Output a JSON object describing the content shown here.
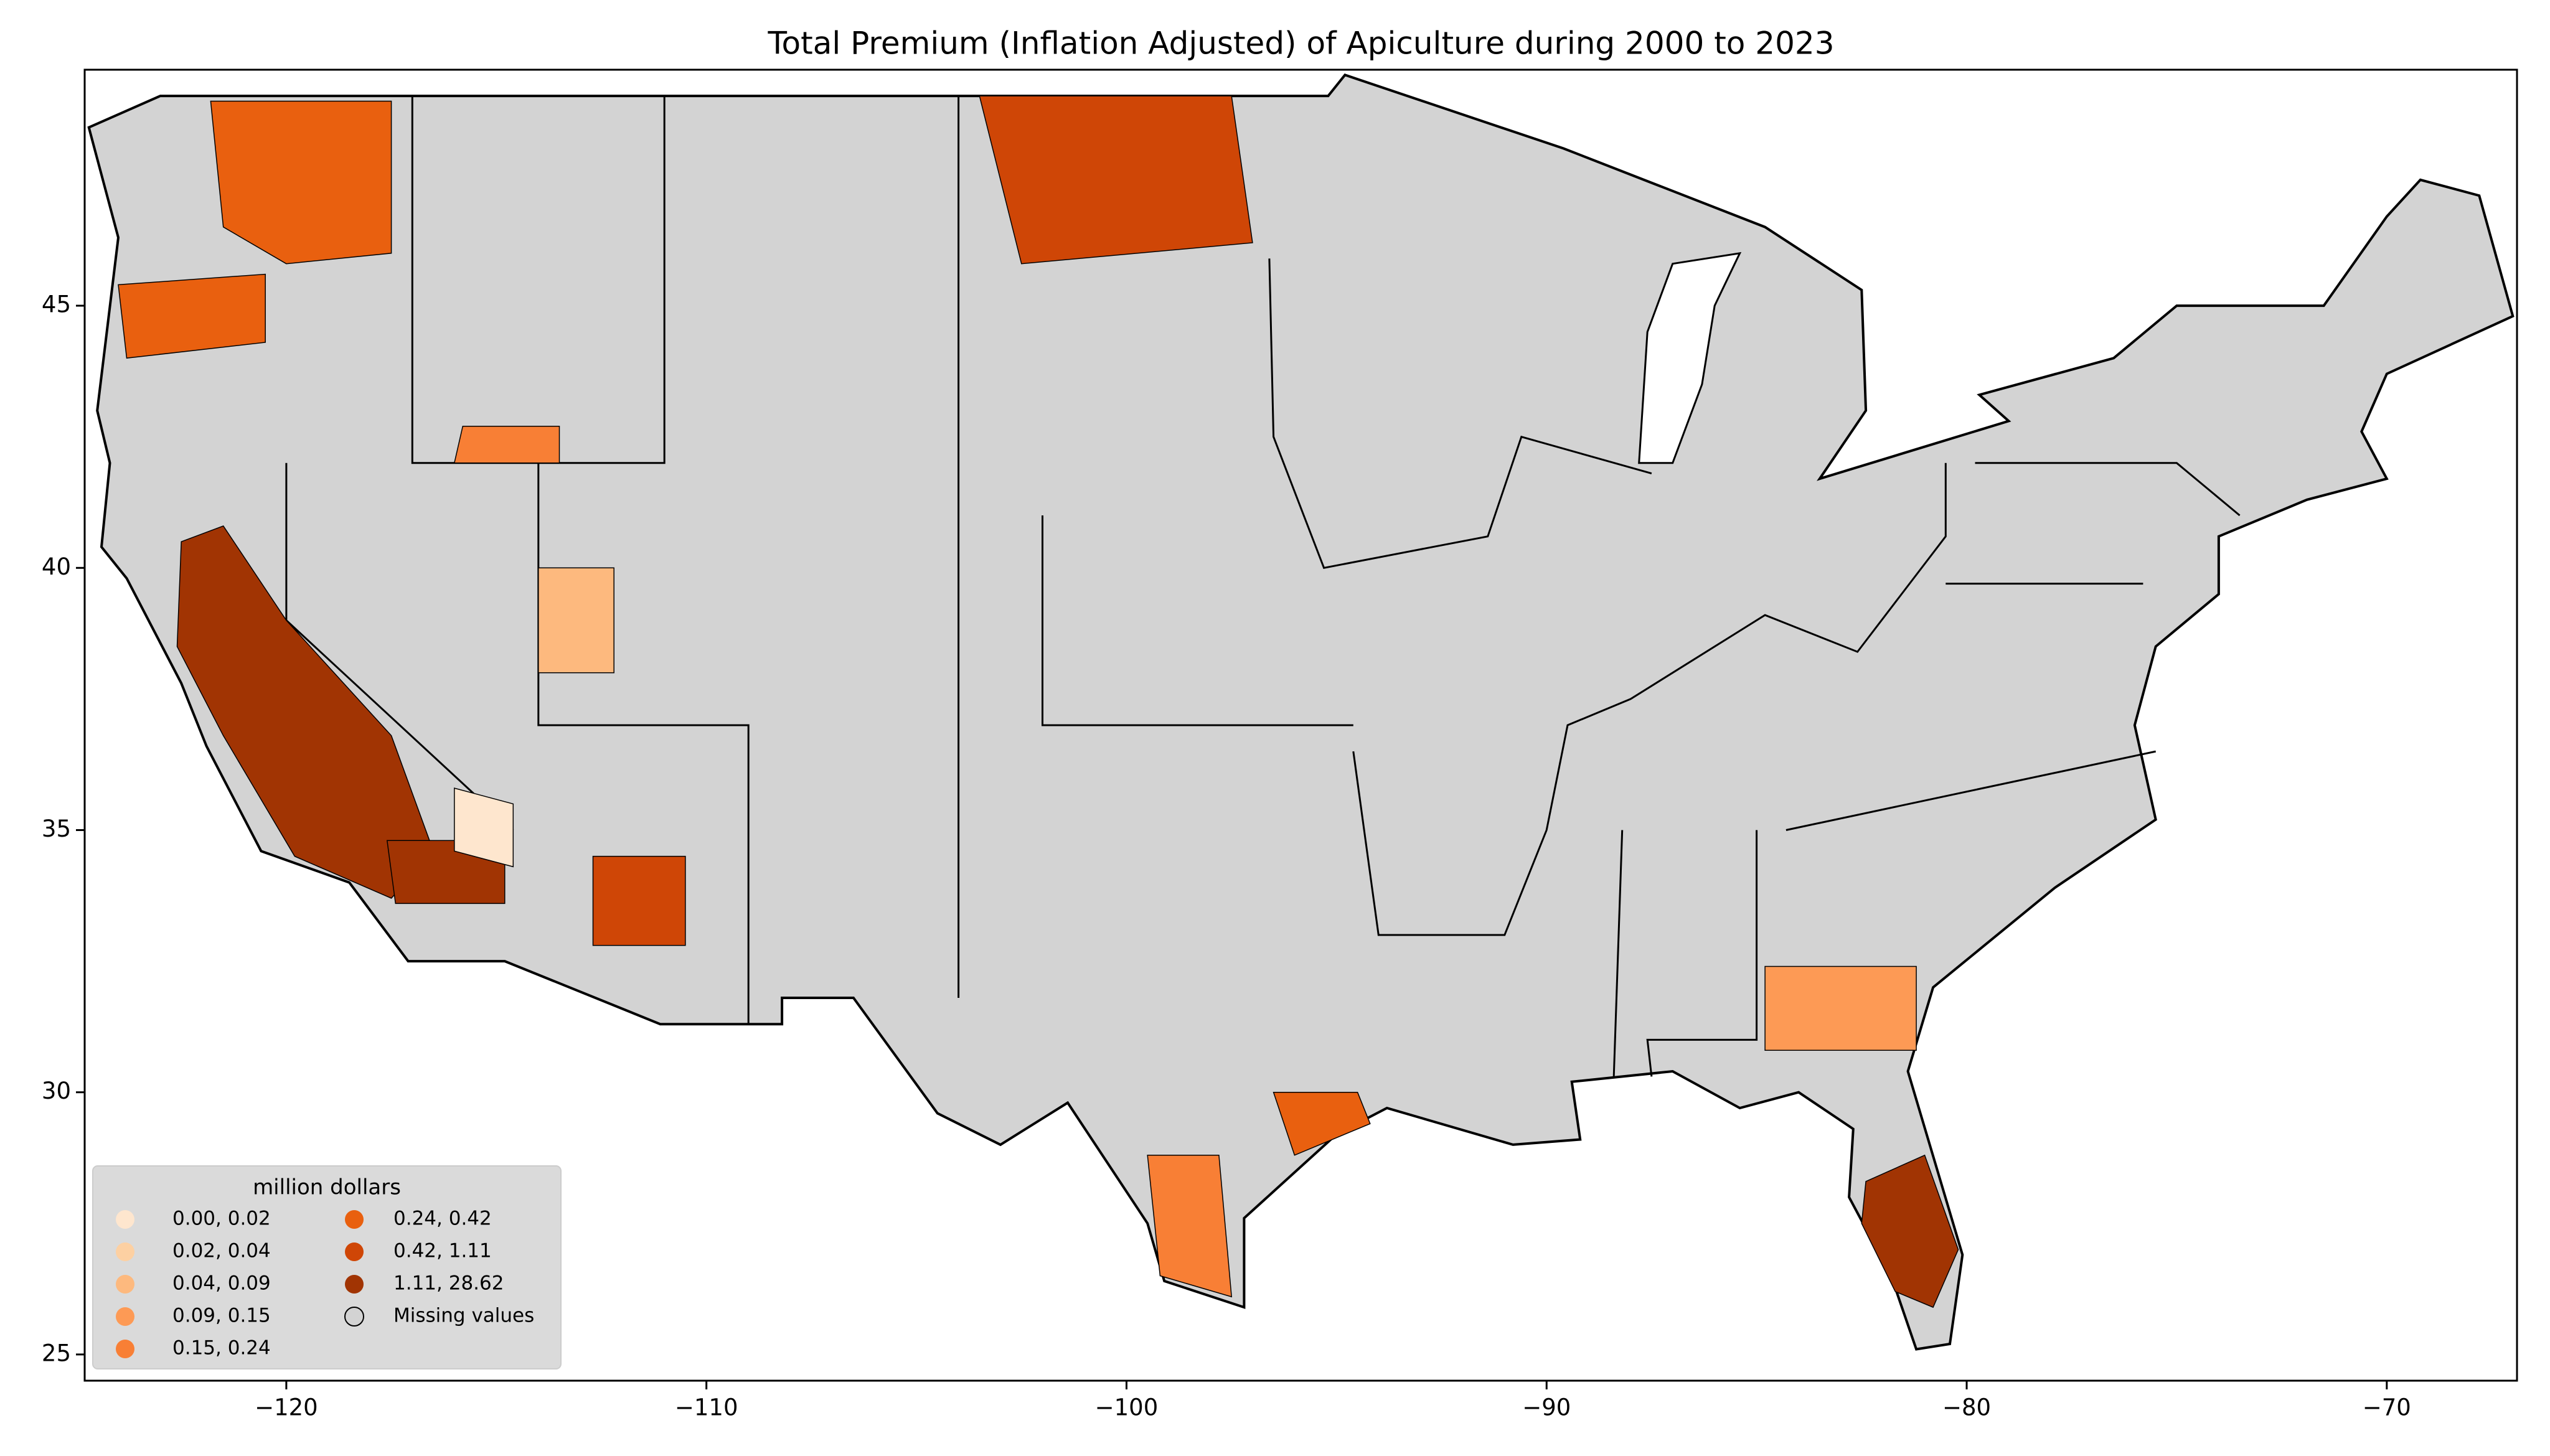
{
  "chart_data": {
    "type": "choropleth",
    "title": "Total  Premium  (Inflation Adjusted) of Apiculture during 2000 to 2023",
    "xlim": [
      -124.8,
      -66.9
    ],
    "ylim": [
      24.5,
      49.5
    ],
    "xticks": [
      {
        "value": -120,
        "label": "−120"
      },
      {
        "value": -110,
        "label": "−110"
      },
      {
        "value": -100,
        "label": "−100"
      },
      {
        "value": -90,
        "label": "−90"
      },
      {
        "value": -80,
        "label": "−80"
      },
      {
        "value": -70,
        "label": "−70"
      }
    ],
    "yticks": [
      25,
      30,
      35,
      40,
      45
    ],
    "legend": {
      "title": "million dollars",
      "position": "lower left"
    },
    "series": [
      {
        "name": "0.00,  0.02",
        "color": "#fee6ce"
      },
      {
        "name": "0.02,  0.04",
        "color": "#fdd0a2"
      },
      {
        "name": "0.04,  0.09",
        "color": "#fdb97e"
      },
      {
        "name": "0.09,  0.15",
        "color": "#fd9a55"
      },
      {
        "name": "0.15,  0.24",
        "color": "#f87f35"
      },
      {
        "name": "0.24,  0.42",
        "color": "#e9600f"
      },
      {
        "name": "0.42,  1.11",
        "color": "#cf4606"
      },
      {
        "name": "1.11, 28.62",
        "color": "#a13403"
      },
      {
        "name": "Missing values",
        "color": "#d3d3d3"
      }
    ]
  }
}
